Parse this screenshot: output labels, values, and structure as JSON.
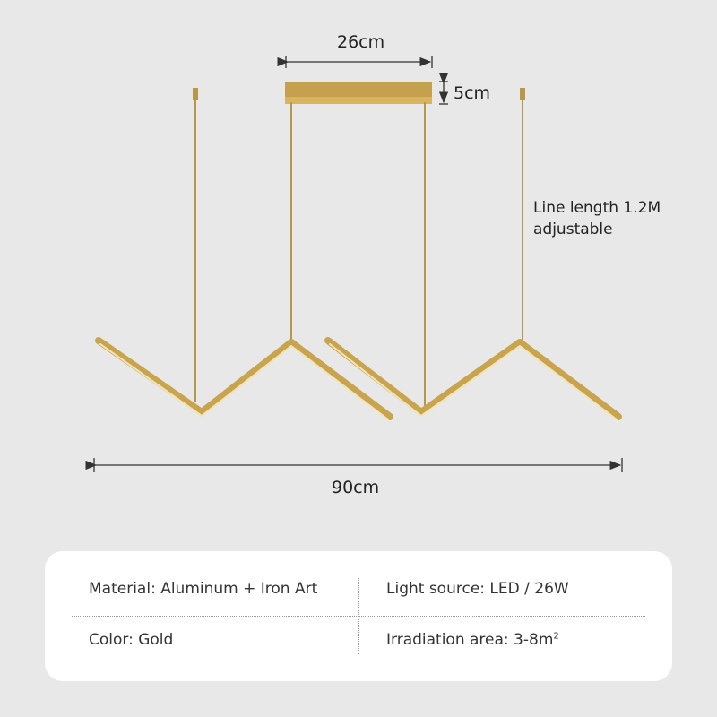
{
  "dimensions": {
    "canopy_width": "26cm",
    "canopy_height": "5cm",
    "line_length": "Line length 1.2M",
    "line_note": "adjustable",
    "total_width": "90cm"
  },
  "colors": {
    "gold": "#c9a44f",
    "background": "#e8e8e8"
  },
  "specs": {
    "material": "Material: Aluminum + Iron Art",
    "light_source": "Light source: LED / 26W",
    "color": "Color: Gold",
    "irradiation_label": "Irradiation area: 3-8m",
    "irradiation_sup": "2"
  }
}
